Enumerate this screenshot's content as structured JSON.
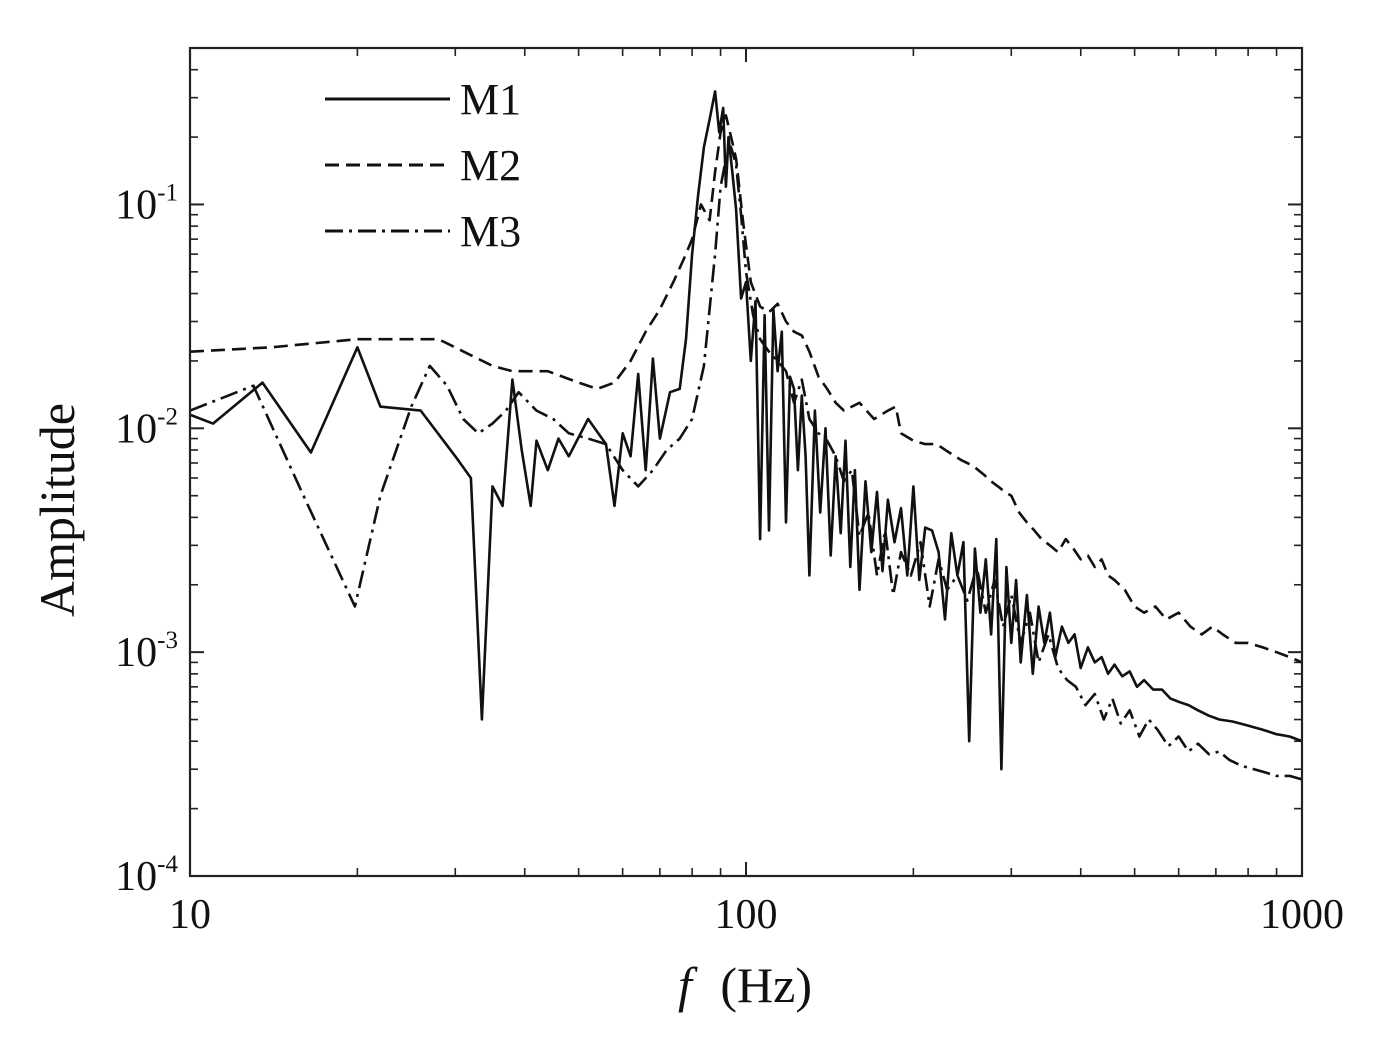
{
  "chart_data": {
    "type": "line",
    "xlabel_symbol": "f",
    "xlabel_unit": "(Hz)",
    "ylabel": "Amplitude",
    "xscale": "log",
    "yscale": "log",
    "xlim": [
      10,
      1000
    ],
    "ylim": [
      0.0001,
      0.5
    ],
    "grid": false,
    "legend_position": "top-left",
    "x_ticks": [
      {
        "value": 10,
        "label": "10"
      },
      {
        "value": 100,
        "label": "100"
      },
      {
        "value": 1000,
        "label": "1000"
      }
    ],
    "y_ticks": [
      {
        "value": 0.1,
        "base": "10",
        "exp": "-1"
      },
      {
        "value": 0.01,
        "base": "10",
        "exp": "-2"
      },
      {
        "value": 0.001,
        "base": "10",
        "exp": "-3"
      },
      {
        "value": 0.0001,
        "base": "10",
        "exp": "-4"
      }
    ],
    "series": [
      {
        "name": "M1",
        "color": "#111111",
        "dash": "",
        "width": 2.6,
        "x": [
          10,
          11,
          13.5,
          16.5,
          20,
          22,
          26,
          30,
          32,
          33.5,
          35,
          36.5,
          38,
          39.5,
          41,
          42,
          44,
          46,
          48,
          52,
          56,
          58,
          60,
          62,
          64,
          66,
          68,
          70,
          73,
          76,
          78,
          80,
          82,
          84,
          86,
          88,
          89.5,
          91,
          92,
          93,
          94.5,
          96,
          98,
          100,
          102,
          104,
          106,
          108,
          110,
          112,
          114,
          116,
          118,
          120,
          122,
          124,
          126,
          128,
          130,
          133,
          136,
          139,
          142,
          145,
          148,
          151,
          154,
          157,
          160,
          164,
          168,
          172,
          176,
          180,
          185,
          190,
          195,
          200,
          205,
          210,
          216,
          222,
          228,
          234,
          240,
          246,
          252,
          258,
          264,
          270,
          276,
          282,
          288,
          294,
          300,
          306,
          312,
          320,
          328,
          336,
          344,
          352,
          360,
          370,
          380,
          390,
          400,
          412,
          424,
          436,
          448,
          460,
          475,
          490,
          505,
          520,
          540,
          560,
          580,
          600,
          625,
          650,
          680,
          710,
          750,
          800,
          850,
          900,
          950,
          1000
        ],
        "y": [
          0.0115,
          0.0105,
          0.016,
          0.0078,
          0.023,
          0.0125,
          0.012,
          0.0075,
          0.006,
          0.0005,
          0.0055,
          0.0045,
          0.0165,
          0.008,
          0.0045,
          0.0088,
          0.0065,
          0.009,
          0.0075,
          0.011,
          0.0085,
          0.0045,
          0.0095,
          0.0075,
          0.0175,
          0.0065,
          0.0205,
          0.009,
          0.0145,
          0.015,
          0.025,
          0.06,
          0.11,
          0.18,
          0.24,
          0.32,
          0.21,
          0.27,
          0.12,
          0.2,
          0.14,
          0.095,
          0.038,
          0.045,
          0.02,
          0.037,
          0.0032,
          0.032,
          0.0035,
          0.034,
          0.018,
          0.027,
          0.0038,
          0.017,
          0.015,
          0.0065,
          0.014,
          0.0075,
          0.0022,
          0.012,
          0.0042,
          0.01,
          0.0027,
          0.0075,
          0.0034,
          0.0088,
          0.0024,
          0.0065,
          0.0019,
          0.0058,
          0.0028,
          0.0052,
          0.0023,
          0.0048,
          0.0031,
          0.0044,
          0.0022,
          0.0055,
          0.0021,
          0.0036,
          0.0035,
          0.0028,
          0.0014,
          0.0034,
          0.0022,
          0.0031,
          0.0004,
          0.0029,
          0.0015,
          0.0026,
          0.0012,
          0.0032,
          0.0003,
          0.0024,
          0.0011,
          0.0021,
          0.0009,
          0.0018,
          0.0008,
          0.0016,
          0.0011,
          0.0015,
          0.00095,
          0.0013,
          0.0011,
          0.0012,
          0.00085,
          0.00105,
          0.0009,
          0.00095,
          0.0008,
          0.00088,
          0.00078,
          0.00082,
          0.0007,
          0.00075,
          0.00068,
          0.00068,
          0.00062,
          0.0006,
          0.00058,
          0.00055,
          0.00052,
          0.0005,
          0.00049,
          0.00047,
          0.00045,
          0.00043,
          0.00042,
          0.0004
        ]
      },
      {
        "name": "M2",
        "color": "#111111",
        "dash": "14 7",
        "width": 2.6,
        "x": [
          10,
          14,
          20,
          28,
          35,
          38,
          44,
          50,
          54,
          58,
          62,
          66,
          70,
          74,
          78,
          80,
          83,
          86,
          88,
          90,
          92,
          94,
          96,
          99,
          102,
          106,
          110,
          114,
          118,
          122,
          126,
          130,
          135,
          140,
          145,
          150,
          160,
          170,
          180,
          186,
          190,
          200,
          210,
          220,
          232,
          244,
          256,
          268,
          276,
          284,
          292,
          300,
          310,
          320,
          330,
          340,
          352,
          364,
          376,
          388,
          400,
          412,
          424,
          436,
          448,
          460,
          480,
          500,
          520,
          545,
          570,
          600,
          630,
          660,
          690,
          720,
          760,
          800,
          850,
          900,
          950,
          1000
        ],
        "y": [
          0.022,
          0.023,
          0.025,
          0.025,
          0.019,
          0.018,
          0.018,
          0.016,
          0.015,
          0.016,
          0.02,
          0.027,
          0.034,
          0.045,
          0.06,
          0.07,
          0.1,
          0.085,
          0.14,
          0.21,
          0.25,
          0.2,
          0.16,
          0.08,
          0.045,
          0.035,
          0.033,
          0.036,
          0.03,
          0.027,
          0.026,
          0.022,
          0.017,
          0.015,
          0.013,
          0.012,
          0.013,
          0.011,
          0.012,
          0.0125,
          0.0095,
          0.0088,
          0.0085,
          0.0085,
          0.0078,
          0.0072,
          0.0068,
          0.0062,
          0.0058,
          0.0055,
          0.0052,
          0.005,
          0.0042,
          0.0038,
          0.0035,
          0.0032,
          0.003,
          0.0028,
          0.0032,
          0.0029,
          0.0026,
          0.0027,
          0.0024,
          0.0026,
          0.0022,
          0.0021,
          0.0019,
          0.0016,
          0.0015,
          0.0016,
          0.0014,
          0.0015,
          0.0013,
          0.0012,
          0.0013,
          0.0012,
          0.0011,
          0.0011,
          0.00105,
          0.001,
          0.00095,
          0.0009
        ]
      },
      {
        "name": "M3",
        "color": "#111111",
        "dash": "18 6 3 6",
        "width": 2.6,
        "x": [
          10,
          13,
          16,
          19.8,
          22,
          25,
          27,
          29,
          31,
          33,
          35,
          37,
          39,
          42,
          45,
          48,
          52,
          56,
          60,
          64,
          68,
          72,
          76,
          80,
          84,
          88,
          90,
          92,
          94,
          96,
          98,
          100,
          103,
          106,
          110,
          114,
          118,
          122,
          126,
          130,
          135,
          140,
          145,
          150,
          155,
          160,
          166,
          172,
          178,
          184,
          190,
          198,
          206,
          214,
          222,
          230,
          240,
          250,
          260,
          270,
          280,
          290,
          300,
          312,
          324,
          336,
          350,
          364,
          378,
          392,
          408,
          424,
          440,
          456,
          472,
          490,
          510,
          530,
          550,
          575,
          600,
          625,
          650,
          680,
          710,
          740,
          780,
          820,
          860,
          900,
          950,
          1000
        ],
        "y": [
          0.012,
          0.0155,
          0.005,
          0.0016,
          0.005,
          0.0125,
          0.019,
          0.0155,
          0.011,
          0.0095,
          0.0105,
          0.012,
          0.0145,
          0.012,
          0.011,
          0.0095,
          0.009,
          0.0085,
          0.0065,
          0.0055,
          0.0065,
          0.008,
          0.009,
          0.011,
          0.019,
          0.06,
          0.12,
          0.16,
          0.18,
          0.15,
          0.09,
          0.05,
          0.032,
          0.025,
          0.022,
          0.02,
          0.018,
          0.013,
          0.0165,
          0.011,
          0.0095,
          0.0088,
          0.0075,
          0.0058,
          0.0065,
          0.0033,
          0.0042,
          0.0022,
          0.0035,
          0.0018,
          0.0028,
          0.0022,
          0.0031,
          0.0016,
          0.0026,
          0.0019,
          0.0022,
          0.0017,
          0.0024,
          0.0015,
          0.0021,
          0.0013,
          0.0018,
          0.0011,
          0.0015,
          0.0009,
          0.0012,
          0.00085,
          0.00075,
          0.0007,
          0.00058,
          0.00065,
          0.0005,
          0.00062,
          0.00048,
          0.00055,
          0.00042,
          0.0005,
          0.00045,
          0.00038,
          0.00042,
          0.00036,
          0.00039,
          0.00035,
          0.00036,
          0.00033,
          0.00031,
          0.0003,
          0.00029,
          0.00028,
          0.00028,
          0.00027
        ]
      }
    ]
  }
}
